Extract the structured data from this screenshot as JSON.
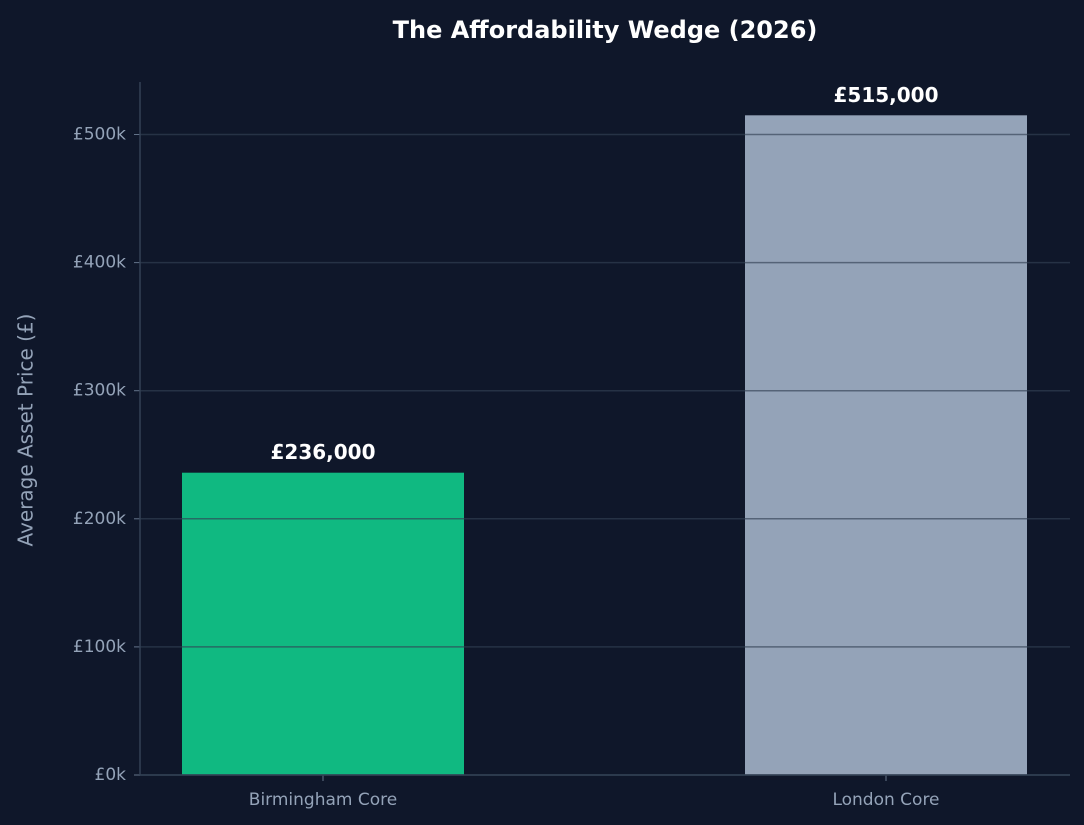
{
  "chart_data": {
    "type": "bar",
    "title": "The Affordability Wedge (2026)",
    "y_label": "Average Asset Price (£)",
    "categories": [
      "Birmingham Core",
      "London Core"
    ],
    "values": [
      236000,
      515000
    ],
    "value_labels": [
      "£236,000",
      "£515,000"
    ],
    "colors": [
      "#10b981",
      "#94a3b8"
    ],
    "ylim": [
      0,
      541000
    ],
    "yticks": [
      {
        "value": 0,
        "label": "£0k"
      },
      {
        "value": 100000,
        "label": "£100k"
      },
      {
        "value": 200000,
        "label": "£200k"
      },
      {
        "value": 300000,
        "label": "£300k"
      },
      {
        "value": 400000,
        "label": "£400k"
      },
      {
        "value": 500000,
        "label": "£500k"
      }
    ],
    "grid": true
  }
}
